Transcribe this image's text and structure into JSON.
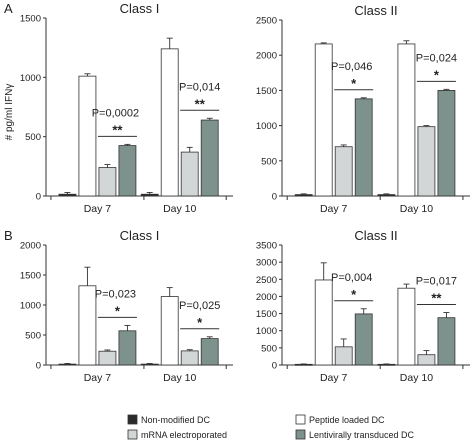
{
  "panel_labels": [
    "A",
    "B"
  ],
  "ylabel": "# pg/ml IFNγ",
  "legend": [
    {
      "name": "Non-modified DC",
      "color": "#2b2b2b"
    },
    {
      "name": "Peptide loaded DC",
      "color": "#ffffff"
    },
    {
      "name": "mRNA electroporated",
      "color": "#d2d6d6"
    },
    {
      "name": "Lentivirally transduced DC",
      "color": "#7d918d"
    }
  ],
  "chart_data": [
    {
      "type": "bar",
      "panel": "A",
      "title": "Class I",
      "categories": [
        "Day 7",
        "Day 10"
      ],
      "ylim": [
        0,
        1500
      ],
      "yticks": [
        0,
        500,
        1000,
        1500
      ],
      "series": [
        {
          "name": "Non-modified DC",
          "values": [
            15,
            15
          ],
          "errors": [
            15,
            15
          ]
        },
        {
          "name": "Peptide loaded DC",
          "values": [
            1010,
            1240
          ],
          "errors": [
            20,
            90
          ]
        },
        {
          "name": "mRNA electroporated",
          "values": [
            240,
            370
          ],
          "errors": [
            25,
            40
          ]
        },
        {
          "name": "Lentivirally transduced DC",
          "values": [
            425,
            640
          ],
          "errors": [
            10,
            15
          ]
        }
      ],
      "annotations": [
        {
          "category": "Day 7",
          "pvalue": "P=0,0002",
          "stars": "**"
        },
        {
          "category": "Day 10",
          "pvalue": "P=0,014",
          "stars": "**"
        }
      ]
    },
    {
      "type": "bar",
      "panel": "A",
      "title": "Class II",
      "categories": [
        "Day 7",
        "Day 10"
      ],
      "ylim": [
        0,
        2500
      ],
      "yticks": [
        0,
        500,
        1000,
        1500,
        2000,
        2500
      ],
      "series": [
        {
          "name": "Non-modified DC",
          "values": [
            20,
            20
          ],
          "errors": [
            10,
            10
          ]
        },
        {
          "name": "Peptide loaded DC",
          "values": [
            2160,
            2160
          ],
          "errors": [
            15,
            45
          ]
        },
        {
          "name": "mRNA electroporated",
          "values": [
            700,
            985
          ],
          "errors": [
            25,
            15
          ]
        },
        {
          "name": "Lentivirally transduced DC",
          "values": [
            1380,
            1500
          ],
          "errors": [
            15,
            15
          ]
        }
      ],
      "annotations": [
        {
          "category": "Day 7",
          "pvalue": "P=0,046",
          "stars": "*"
        },
        {
          "category": "Day 10",
          "pvalue": "P=0,024",
          "stars": "*"
        }
      ]
    },
    {
      "type": "bar",
      "panel": "B",
      "title": "Class I",
      "categories": [
        "Day 7",
        "Day 10"
      ],
      "ylim": [
        0,
        2000
      ],
      "yticks": [
        0,
        500,
        1000,
        1500,
        2000
      ],
      "series": [
        {
          "name": "Non-modified DC",
          "values": [
            15,
            15
          ],
          "errors": [
            10,
            10
          ]
        },
        {
          "name": "Peptide loaded DC",
          "values": [
            1320,
            1140
          ],
          "errors": [
            310,
            150
          ]
        },
        {
          "name": "mRNA electroporated",
          "values": [
            230,
            235
          ],
          "errors": [
            20,
            20
          ]
        },
        {
          "name": "Lentivirally transduced DC",
          "values": [
            570,
            440
          ],
          "errors": [
            90,
            30
          ]
        }
      ],
      "annotations": [
        {
          "category": "Day 7",
          "pvalue": "P=0,023",
          "stars": "*"
        },
        {
          "category": "Day 10",
          "pvalue": "P=0,025",
          "stars": "*"
        }
      ]
    },
    {
      "type": "bar",
      "panel": "B",
      "title": "Class II",
      "categories": [
        "Day 7",
        "Day 10"
      ],
      "ylim": [
        0,
        3500
      ],
      "yticks": [
        0,
        500,
        1000,
        1500,
        2000,
        2500,
        3000,
        3500
      ],
      "series": [
        {
          "name": "Non-modified DC",
          "values": [
            20,
            20
          ],
          "errors": [
            10,
            10
          ]
        },
        {
          "name": "Peptide loaded DC",
          "values": [
            2480,
            2240
          ],
          "errors": [
            500,
            120
          ]
        },
        {
          "name": "mRNA electroporated",
          "values": [
            530,
            300
          ],
          "errors": [
            230,
            120
          ]
        },
        {
          "name": "Lentivirally transduced DC",
          "values": [
            1490,
            1380
          ],
          "errors": [
            150,
            150
          ]
        }
      ],
      "annotations": [
        {
          "category": "Day 7",
          "pvalue": "P=0,004",
          "stars": "*"
        },
        {
          "category": "Day 10",
          "pvalue": "P=0,017",
          "stars": "**"
        }
      ]
    }
  ]
}
